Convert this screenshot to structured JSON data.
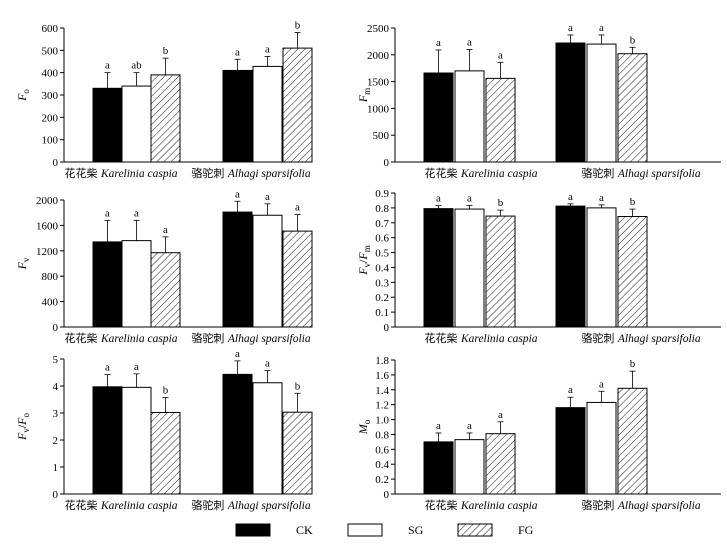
{
  "legend": [
    {
      "name": "CK",
      "pattern": "solid"
    },
    {
      "name": "SG",
      "pattern": "white"
    },
    {
      "name": "FG",
      "pattern": "hatch"
    }
  ],
  "chart_data": [
    {
      "type": "bar",
      "ylabel": {
        "main": "F",
        "sub": "o"
      },
      "ylim": [
        0,
        600
      ],
      "yticks": [
        0,
        100,
        200,
        300,
        400,
        500,
        600
      ],
      "groups": [
        {
          "cn": "花花柴",
          "latin": "Karelinia caspia"
        },
        {
          "cn": "骆驼刺",
          "latin": "Alhagi sparsifolia"
        }
      ],
      "series": [
        {
          "name": "CK",
          "values": [
            330,
            410
          ],
          "errors": [
            70,
            50
          ],
          "letters": [
            "a",
            "a"
          ]
        },
        {
          "name": "SG",
          "values": [
            340,
            428
          ],
          "errors": [
            60,
            45
          ],
          "letters": [
            "ab",
            "a"
          ]
        },
        {
          "name": "FG",
          "values": [
            390,
            510
          ],
          "errors": [
            75,
            70
          ],
          "letters": [
            "b",
            "b"
          ]
        }
      ]
    },
    {
      "type": "bar",
      "ylabel": {
        "main": "F",
        "sub": "m"
      },
      "ylim": [
        0,
        2500
      ],
      "yticks": [
        0,
        500,
        1000,
        1500,
        2000,
        2500
      ],
      "groups": [
        {
          "cn": "花花柴",
          "latin": "Karelinia caspia"
        },
        {
          "cn": "骆驼刺",
          "latin": "Alhagi sparsifolia"
        }
      ],
      "series": [
        {
          "name": "CK",
          "values": [
            1660,
            2220
          ],
          "errors": [
            430,
            150
          ],
          "letters": [
            "a",
            "a"
          ]
        },
        {
          "name": "SG",
          "values": [
            1700,
            2200
          ],
          "errors": [
            400,
            170
          ],
          "letters": [
            "a",
            "a"
          ]
        },
        {
          "name": "FG",
          "values": [
            1560,
            2020
          ],
          "errors": [
            300,
            120
          ],
          "letters": [
            "a",
            "b"
          ]
        }
      ]
    },
    {
      "type": "bar",
      "ylabel": {
        "main": "F",
        "sub": "v"
      },
      "ylim": [
        0,
        2000
      ],
      "yticks": [
        0,
        400,
        800,
        1200,
        1600,
        2000
      ],
      "groups": [
        {
          "cn": "花花柴",
          "latin": "Karelinia caspia"
        },
        {
          "cn": "骆驼刺",
          "latin": "Alhagi sparsifolia"
        }
      ],
      "series": [
        {
          "name": "CK",
          "values": [
            1340,
            1810
          ],
          "errors": [
            340,
            170
          ],
          "letters": [
            "a",
            "a"
          ]
        },
        {
          "name": "SG",
          "values": [
            1360,
            1760
          ],
          "errors": [
            320,
            180
          ],
          "letters": [
            "a",
            "a"
          ]
        },
        {
          "name": "FG",
          "values": [
            1170,
            1510
          ],
          "errors": [
            250,
            260
          ],
          "letters": [
            "a",
            "a"
          ]
        }
      ]
    },
    {
      "type": "bar",
      "ylabel": {
        "main": "F",
        "sub": "v",
        "mid": "/",
        "main2": "F",
        "sub2": "m"
      },
      "ylim": [
        0,
        0.9
      ],
      "yticks": [
        0,
        0.1,
        0.2,
        0.3,
        0.4,
        0.5,
        0.6,
        0.7,
        0.8,
        0.9
      ],
      "groups": [
        {
          "cn": "花花柴",
          "latin": "Karelinia caspia"
        },
        {
          "cn": "骆驼刺",
          "latin": "Alhagi sparsifolia"
        }
      ],
      "series": [
        {
          "name": "CK",
          "values": [
            0.795,
            0.812
          ],
          "errors": [
            0.02,
            0.015
          ],
          "letters": [
            "a",
            "a"
          ]
        },
        {
          "name": "SG",
          "values": [
            0.792,
            0.8
          ],
          "errors": [
            0.025,
            0.02
          ],
          "letters": [
            "a",
            "a"
          ]
        },
        {
          "name": "FG",
          "values": [
            0.745,
            0.742
          ],
          "errors": [
            0.04,
            0.05
          ],
          "letters": [
            "b",
            "b"
          ]
        }
      ]
    },
    {
      "type": "bar",
      "ylabel": {
        "main": "F",
        "sub": "v",
        "mid": "/",
        "main2": "F",
        "sub2": "o"
      },
      "ylim": [
        0,
        5
      ],
      "yticks": [
        0,
        1,
        2,
        3,
        4,
        5
      ],
      "groups": [
        {
          "cn": "花花柴",
          "latin": "Karelinia caspia"
        },
        {
          "cn": "骆驼刺",
          "latin": "Alhagi sparsifolia"
        }
      ],
      "series": [
        {
          "name": "CK",
          "values": [
            3.97,
            4.43
          ],
          "errors": [
            0.45,
            0.5
          ],
          "letters": [
            "a",
            "a"
          ]
        },
        {
          "name": "SG",
          "values": [
            3.95,
            4.12
          ],
          "errors": [
            0.5,
            0.45
          ],
          "letters": [
            "a",
            "a"
          ]
        },
        {
          "name": "FG",
          "values": [
            3.02,
            3.03
          ],
          "errors": [
            0.55,
            0.7
          ],
          "letters": [
            "b",
            "b"
          ]
        }
      ]
    },
    {
      "type": "bar",
      "ylabel": {
        "main": "M",
        "sub": "o"
      },
      "ylim": [
        0,
        1.8
      ],
      "yticks": [
        0,
        0.2,
        0.4,
        0.6,
        0.8,
        1.0,
        1.2,
        1.4,
        1.6,
        1.8
      ],
      "tick_decimals": 1,
      "groups": [
        {
          "cn": "花花柴",
          "latin": "Karelinia caspia"
        },
        {
          "cn": "骆驼刺",
          "latin": "Alhagi sparsifolia"
        }
      ],
      "series": [
        {
          "name": "CK",
          "values": [
            0.7,
            1.16
          ],
          "errors": [
            0.12,
            0.14
          ],
          "letters": [
            "a",
            "a"
          ]
        },
        {
          "name": "SG",
          "values": [
            0.73,
            1.23
          ],
          "errors": [
            0.09,
            0.15
          ],
          "letters": [
            "a",
            "a"
          ]
        },
        {
          "name": "FG",
          "values": [
            0.81,
            1.42
          ],
          "errors": [
            0.16,
            0.23
          ],
          "letters": [
            "a",
            "b"
          ]
        }
      ]
    }
  ]
}
